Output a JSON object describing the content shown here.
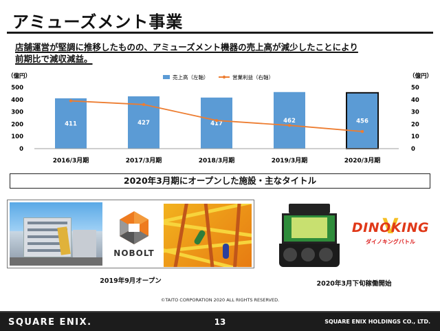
{
  "page": {
    "title": "アミューズメント事業",
    "lead_line1": "店舗運営が堅調に推移したものの、アミューズメント機器の売上高が減少したことにより",
    "lead_line2": "前期比で減収減益。",
    "banner": "2020年3月期にオープンした施設・主なタイトル",
    "caption_left": "2019年9月オープン",
    "caption_right": "2020年3月下旬稼働開始",
    "nobolt_logo": "NOBOLT",
    "dino_logo": "DINOKING",
    "dino_logo_sub": "ダイノキングバトル",
    "copyright": "©TAITO CORPORATION 2020 ALL RIGHTS RESERVED.",
    "footer_logo": "SQUARE ENIX.",
    "footer_page": "13",
    "footer_company": "SQUARE ENIX HOLDINGS CO., LTD."
  },
  "chart_data": {
    "type": "bar",
    "categories": [
      "2016/3月期",
      "2017/3月期",
      "2018/3月期",
      "2019/3月期",
      "2020/3月期"
    ],
    "series": [
      {
        "name": "売上高（左軸）",
        "type": "bar",
        "axis": "left",
        "values": [
          411,
          427,
          417,
          462,
          456
        ],
        "color": "#5b9bd5"
      },
      {
        "name": "営業利益（右軸）",
        "type": "line",
        "axis": "right",
        "values": [
          39,
          36,
          23,
          19,
          14
        ],
        "color": "#ed7d31"
      }
    ],
    "left_axis": {
      "label": "（億円）",
      "ylim": [
        0,
        500
      ],
      "ticks": [
        0,
        100,
        200,
        300,
        400,
        500
      ]
    },
    "right_axis": {
      "label": "（億円）",
      "ylim": [
        0,
        50
      ],
      "ticks": [
        0,
        10,
        20,
        30,
        40,
        50
      ]
    },
    "highlight_bar_outline": "#111111",
    "grid": false,
    "legend_position": "top-center"
  }
}
